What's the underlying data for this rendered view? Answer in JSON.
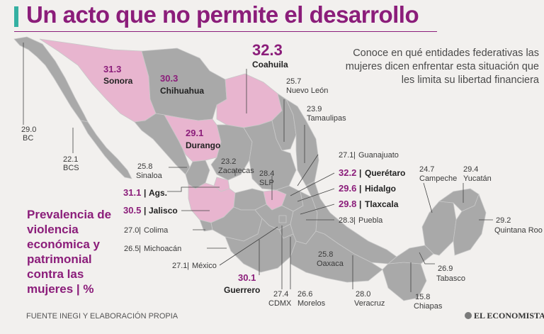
{
  "title": "Un acto que no permite el desarrollo",
  "intro": "Conoce en qué entidades federativas las mujeres dicen enfrentar esta situación que les limita su libertad financiera",
  "legend": "Prevalencia de violencia económica y patrimonial contra las mujeres | %",
  "source": "FUENTE INEGI Y ELABORACIÓN PROPIA",
  "logo": "EL ECONOMISTA",
  "colors": {
    "accent": "#8b1d7a",
    "highlight": "#e8b5cf",
    "base": "#a9a9a9",
    "title_bar": "#35b0a2"
  },
  "states": {
    "coahuila": {
      "value": "32.3",
      "name": "Coahuila"
    },
    "sonora": {
      "value": "31.3",
      "name": "Sonora"
    },
    "chihuahua": {
      "value": "30.3",
      "name": "Chihuahua"
    },
    "durango": {
      "value": "29.1",
      "name": "Durango"
    },
    "bc": {
      "value": "29.0",
      "name": "BC"
    },
    "bcs": {
      "value": "22.1",
      "name": "BCS"
    },
    "sinaloa": {
      "value": "25.8",
      "name": "Sinaloa"
    },
    "zacatecas": {
      "value": "23.2",
      "name": "Zacatecas"
    },
    "nuevo_leon": {
      "value": "25.7",
      "name": "Nuevo León"
    },
    "tamaulipas": {
      "value": "23.9",
      "name": "Tamaulipas"
    },
    "slp": {
      "value": "28.4",
      "name": "SLP"
    },
    "guanajuato": {
      "value": "27.1",
      "name": "Guanajuato"
    },
    "queretaro": {
      "value": "32.2",
      "name": "Querétaro"
    },
    "hidalgo": {
      "value": "29.6",
      "name": "Hidalgo"
    },
    "tlaxcala": {
      "value": "29.8",
      "name": "Tlaxcala"
    },
    "puebla": {
      "value": "28.3",
      "name": "Puebla"
    },
    "ags": {
      "value": "31.1",
      "name": "Ags."
    },
    "jalisco": {
      "value": "30.5",
      "name": "Jalisco"
    },
    "colima": {
      "value": "27.0",
      "name": "Colima"
    },
    "michoacan": {
      "value": "26.5",
      "name": "Michoacán"
    },
    "mexico": {
      "value": "27.1",
      "name": "México"
    },
    "guerrero": {
      "value": "30.1",
      "name": "Guerrero"
    },
    "cdmx": {
      "value": "27.4",
      "name": "CDMX"
    },
    "morelos": {
      "value": "26.6",
      "name": "Morelos"
    },
    "veracruz": {
      "value": "28.0",
      "name": "Veracruz"
    },
    "oaxaca": {
      "value": "25.8",
      "name": "Oaxaca"
    },
    "chiapas": {
      "value": "15.8",
      "name": "Chiapas"
    },
    "tabasco": {
      "value": "26.9",
      "name": "Tabasco"
    },
    "campeche": {
      "value": "24.7",
      "name": "Campeche"
    },
    "yucatan": {
      "value": "29.4",
      "name": "Yucatán"
    },
    "quintana_roo": {
      "value": "29.2",
      "name": "Quintana Roo"
    }
  }
}
